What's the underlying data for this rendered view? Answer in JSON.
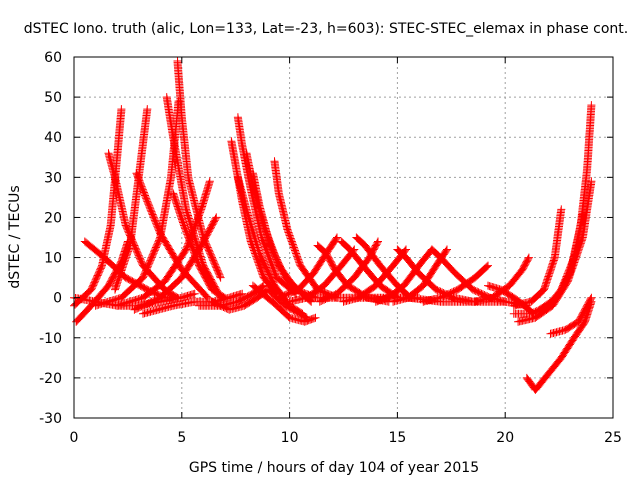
{
  "chart_data": {
    "type": "scatter",
    "title": "dSTEC Iono. truth (alic, Lon=133, Lat=-23, h=603): STEC-STEC_elemax in phase cont.",
    "xlabel": "GPS time / hours of day 104 of year 2015",
    "ylabel": "dSTEC  / TECUs",
    "xlim": [
      0,
      25
    ],
    "ylim": [
      -30,
      60
    ],
    "xticks": [
      0,
      5,
      10,
      15,
      20,
      25
    ],
    "yticks": [
      -30,
      -20,
      -10,
      0,
      10,
      20,
      30,
      40,
      50,
      60
    ],
    "grid": true,
    "marker": "+",
    "color": "#ff0000",
    "series": [
      {
        "x": [
          0.0,
          0.8,
          1.3,
          1.7,
          2.0,
          2.2
        ],
        "y": [
          -2,
          2,
          8,
          18,
          35,
          47
        ]
      },
      {
        "x": [
          1.6,
          1.9,
          2.4,
          3.2,
          4.2,
          4.8
        ],
        "y": [
          36,
          30,
          18,
          8,
          2,
          0
        ]
      },
      {
        "x": [
          0.1,
          0.8,
          1.6,
          2.2,
          2.5
        ],
        "y": [
          -6,
          -2,
          3,
          9,
          14
        ]
      },
      {
        "x": [
          1.9,
          2.6,
          3.0,
          3.4
        ],
        "y": [
          2,
          13,
          30,
          47
        ]
      },
      {
        "x": [
          2.9,
          3.4,
          4.0,
          5.0,
          6.2
        ],
        "y": [
          31,
          24,
          16,
          7,
          0
        ]
      },
      {
        "x": [
          0.5,
          1.4,
          2.4,
          3.4,
          4.2,
          4.6
        ],
        "y": [
          14,
          10,
          5,
          2,
          0,
          0
        ]
      },
      {
        "x": [
          1.0,
          2.2,
          3.2,
          4.0,
          4.5,
          4.85
        ],
        "y": [
          -2,
          0,
          5,
          15,
          30,
          49
        ]
      },
      {
        "x": [
          4.3,
          4.6,
          5.2,
          6.0,
          6.8
        ],
        "y": [
          50,
          40,
          22,
          8,
          0
        ]
      },
      {
        "x": [
          4.8,
          5.0,
          5.3,
          6.0,
          6.8
        ],
        "y": [
          59,
          45,
          30,
          15,
          5
        ]
      },
      {
        "x": [
          4.6,
          5.1,
          5.8,
          6.4,
          7.0
        ],
        "y": [
          26,
          18,
          8,
          2,
          0
        ]
      },
      {
        "x": [
          2.0,
          3.2,
          4.2,
          5.2,
          5.9,
          6.3
        ],
        "y": [
          -2,
          0,
          4,
          12,
          22,
          29
        ]
      },
      {
        "x": [
          2.8,
          4.0,
          5.0,
          5.8,
          6.6
        ],
        "y": [
          -3,
          0,
          5,
          12,
          20
        ]
      },
      {
        "x": [
          3.2,
          4.6,
          5.6,
          6.5,
          7.2,
          7.8
        ],
        "y": [
          -4,
          -2,
          -1,
          -1,
          0,
          1
        ]
      },
      {
        "x": [
          5.8,
          6.8,
          7.6,
          8.3,
          8.8
        ],
        "y": [
          -2,
          -2,
          -1,
          1,
          3
        ]
      },
      {
        "x": [
          7.3,
          7.5,
          7.8,
          8.2,
          8.8,
          9.4
        ],
        "y": [
          39,
          33,
          24,
          14,
          5,
          1
        ]
      },
      {
        "x": [
          7.6,
          7.8,
          8.2,
          8.7,
          9.4,
          10.3
        ],
        "y": [
          45,
          38,
          27,
          15,
          5,
          1
        ]
      },
      {
        "x": [
          8.0,
          8.3,
          8.8,
          9.5,
          10.3,
          11.2
        ],
        "y": [
          36,
          28,
          18,
          8,
          2,
          0
        ]
      },
      {
        "x": [
          8.3,
          8.6,
          9.1,
          9.8,
          10.6,
          11.0
        ],
        "y": [
          31,
          23,
          13,
          5,
          1,
          -1
        ]
      },
      {
        "x": [
          7.6,
          8.0,
          8.6,
          9.3,
          10.0,
          10.6
        ],
        "y": [
          30,
          22,
          11,
          3,
          -2,
          -4
        ]
      },
      {
        "x": [
          9.3,
          9.5,
          9.9,
          10.5,
          11.3,
          12.2
        ],
        "y": [
          34,
          26,
          17,
          8,
          2,
          0
        ]
      },
      {
        "x": [
          6.4,
          7.2,
          7.9,
          8.5,
          9.0,
          9.8,
          10.8
        ],
        "y": [
          -1,
          -3,
          -2,
          0,
          2,
          -2,
          -5
        ]
      },
      {
        "x": [
          8.3,
          9.2,
          10.0,
          10.7,
          11.2
        ],
        "y": [
          3,
          -1,
          -5,
          -6,
          -5
        ]
      },
      {
        "x": [
          9.5,
          10.4,
          11.1,
          11.7,
          12.2
        ],
        "y": [
          0,
          2,
          6,
          11,
          15
        ]
      },
      {
        "x": [
          10.0,
          10.8,
          11.6,
          12.4,
          13.0
        ],
        "y": [
          -1,
          0,
          3,
          8,
          12
        ]
      },
      {
        "x": [
          11.3,
          11.7,
          12.1,
          12.7,
          13.6,
          14.6
        ],
        "y": [
          13,
          11,
          7,
          3,
          0,
          -1
        ]
      },
      {
        "x": [
          11.4,
          12.2,
          13.0,
          13.7,
          14.1
        ],
        "y": [
          -1,
          1,
          5,
          10,
          14
        ]
      },
      {
        "x": [
          12.4,
          12.8,
          13.4,
          14.2,
          15.0,
          15.8
        ],
        "y": [
          14,
          12,
          8,
          3,
          0,
          0
        ]
      },
      {
        "x": [
          12.5,
          13.2,
          14.0,
          14.8,
          15.4
        ],
        "y": [
          -1,
          0,
          3,
          8,
          12
        ]
      },
      {
        "x": [
          13.1,
          13.5,
          14.2,
          15.0,
          15.6,
          16.0
        ],
        "y": [
          15,
          13,
          8,
          3,
          0,
          0
        ]
      },
      {
        "x": [
          14.0,
          14.6,
          15.3,
          16.0,
          16.6
        ],
        "y": [
          -1,
          0,
          3,
          8,
          12
        ]
      },
      {
        "x": [
          15.0,
          15.4,
          16.0,
          16.8,
          17.6,
          18.5
        ],
        "y": [
          12,
          10,
          6,
          2,
          0,
          -1
        ]
      },
      {
        "x": [
          14.8,
          15.5,
          16.2,
          16.8,
          17.3
        ],
        "y": [
          -1,
          0,
          3,
          8,
          12
        ]
      },
      {
        "x": [
          16.6,
          17.0,
          17.7,
          18.5,
          19.3,
          20.0
        ],
        "y": [
          12,
          10,
          6,
          2,
          0,
          -1
        ]
      },
      {
        "x": [
          16.2,
          17.0,
          17.8,
          18.6,
          19.2
        ],
        "y": [
          -1,
          0,
          2,
          5,
          8
        ]
      },
      {
        "x": [
          18.6,
          19.4,
          20.2,
          20.8,
          21.1
        ],
        "y": [
          -1,
          0,
          3,
          7,
          10
        ]
      },
      {
        "x": [
          19.2,
          19.8,
          20.4,
          20.9,
          21.3
        ],
        "y": [
          3,
          2,
          0,
          -2,
          -4
        ]
      },
      {
        "x": [
          20.4,
          21.2,
          21.8,
          22.3,
          22.6
        ],
        "y": [
          -2,
          -1,
          2,
          10,
          22
        ]
      },
      {
        "x": [
          20.4,
          21.2,
          22.0,
          22.6,
          23.2,
          23.6
        ],
        "y": [
          -4,
          -4,
          -2,
          2,
          10,
          21
        ]
      },
      {
        "x": [
          20.6,
          21.4,
          22.2,
          22.9,
          23.6,
          24.0
        ],
        "y": [
          -6,
          -5,
          -2,
          4,
          15,
          29
        ]
      },
      {
        "x": [
          21.6,
          22.4,
          23.0,
          23.5,
          23.8,
          24.0
        ],
        "y": [
          -3,
          0,
          6,
          18,
          32,
          48
        ]
      },
      {
        "x": [
          22.1,
          22.8,
          23.4,
          24.0
        ],
        "y": [
          -9,
          -8,
          -6,
          0
        ]
      },
      {
        "x": [
          21.0,
          21.4,
          22.0,
          22.6,
          23.2,
          23.7,
          24.0
        ],
        "y": [
          -20,
          -23,
          -19,
          -15,
          -10,
          -6,
          -1
        ]
      },
      {
        "x": [
          0.0,
          1.0,
          2.0,
          3.0,
          4.0,
          5.0,
          5.6
        ],
        "y": [
          0,
          -1,
          -2,
          -2,
          -1,
          0,
          1
        ]
      },
      {
        "x": [
          11.0,
          12.5,
          14.0,
          15.5,
          17.0,
          18.5,
          20.0,
          21.0
        ],
        "y": [
          0,
          0,
          0,
          0,
          -1,
          -1,
          -1,
          -2
        ]
      }
    ]
  }
}
